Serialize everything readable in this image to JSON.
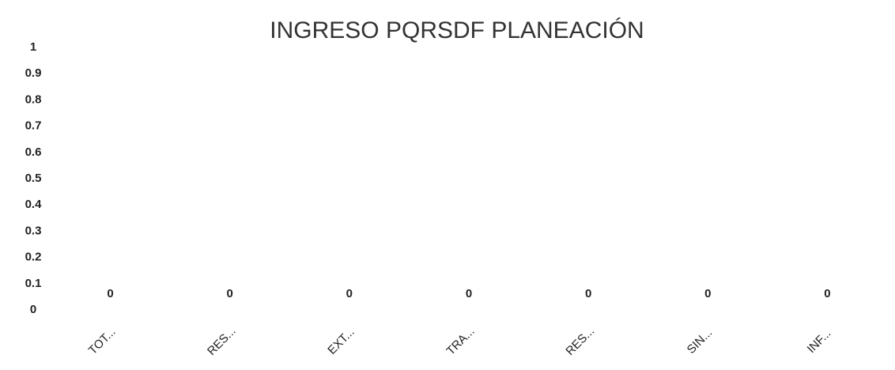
{
  "chart_data": {
    "type": "bar",
    "title": "INGRESO  PQRSDF PLANEACIÓN",
    "categories": [
      "TOT...",
      "RES...",
      "EXT...",
      "TRA...",
      "RES...",
      "SIN...",
      "INF..."
    ],
    "values": [
      0,
      0,
      0,
      0,
      0,
      0,
      0
    ],
    "color": "#4472c4",
    "ylim": [
      0,
      1
    ],
    "yticks": [
      0,
      0.1,
      0.2,
      0.3,
      0.4,
      0.5,
      0.6,
      0.7,
      0.8,
      0.9,
      1
    ],
    "grid": false
  }
}
